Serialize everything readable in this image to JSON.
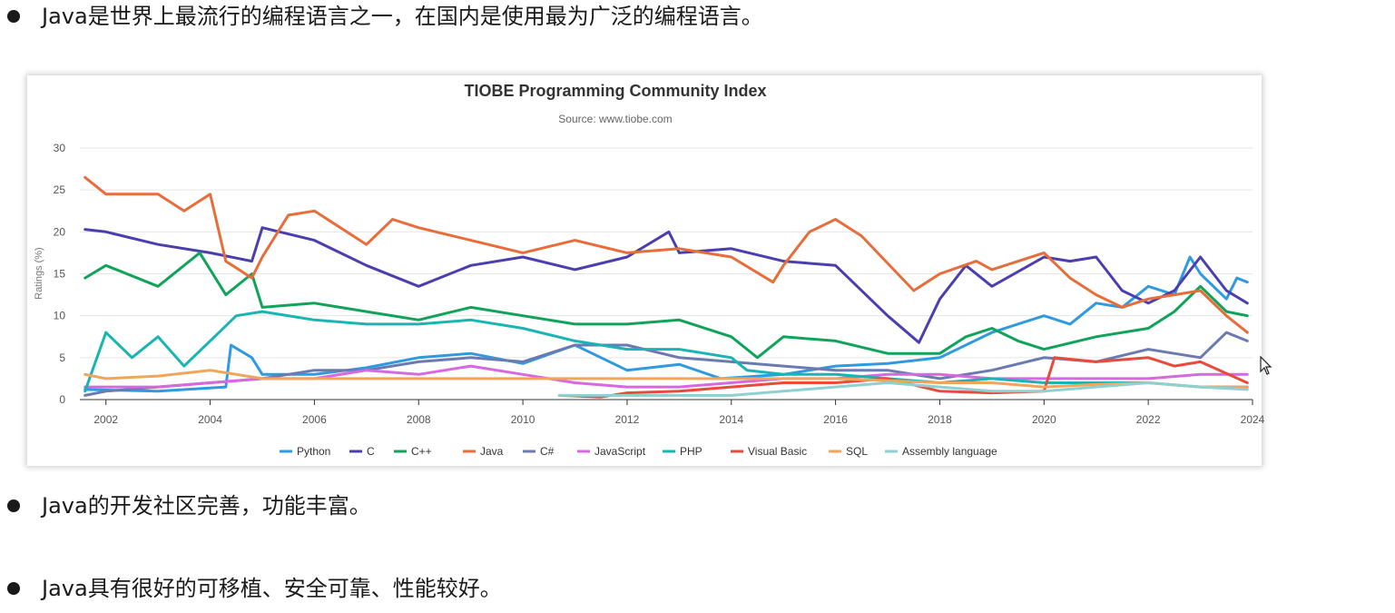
{
  "bullets": [
    {
      "text": "Java是世界上最流行的编程语言之一，在国内是使用最为广泛的编程语言。"
    },
    {
      "text": "Java的开发社区完善，功能丰富。"
    },
    {
      "text": "Java具有很好的可移植、安全可靠、性能较好。"
    }
  ],
  "chart_data": {
    "type": "line",
    "title": "TIOBE Programming Community Index",
    "subtitle": "Source: www.tiobe.com",
    "xlabel": "",
    "ylabel": "Ratings (%)",
    "xlim": [
      2001.5,
      2024.0
    ],
    "ylim": [
      0,
      30
    ],
    "xticks": [
      2002,
      2004,
      2006,
      2008,
      2010,
      2012,
      2014,
      2016,
      2018,
      2020,
      2022,
      2024
    ],
    "yticks": [
      0,
      5,
      10,
      15,
      20,
      25,
      30
    ],
    "grid": true,
    "legend": "bottom",
    "series": [
      {
        "name": "Python",
        "color": "#2f9ae0",
        "points": [
          [
            2001.6,
            1.2
          ],
          [
            2003,
            1.0
          ],
          [
            2004.3,
            1.5
          ],
          [
            2004.4,
            6.5
          ],
          [
            2004.8,
            5.0
          ],
          [
            2005,
            3.0
          ],
          [
            2006,
            3.0
          ],
          [
            2007,
            3.8
          ],
          [
            2008,
            5.0
          ],
          [
            2009,
            5.5
          ],
          [
            2010,
            4.3
          ],
          [
            2011,
            6.5
          ],
          [
            2012,
            3.5
          ],
          [
            2013,
            4.2
          ],
          [
            2013.8,
            2.5
          ],
          [
            2015,
            3.0
          ],
          [
            2016,
            4.0
          ],
          [
            2017,
            4.3
          ],
          [
            2018,
            5.0
          ],
          [
            2019,
            8.0
          ],
          [
            2020,
            10.0
          ],
          [
            2020.5,
            9.0
          ],
          [
            2021,
            11.5
          ],
          [
            2021.5,
            11.0
          ],
          [
            2022,
            13.5
          ],
          [
            2022.5,
            12.5
          ],
          [
            2022.8,
            17.0
          ],
          [
            2023,
            15.0
          ],
          [
            2023.5,
            12.0
          ],
          [
            2023.7,
            14.5
          ],
          [
            2023.9,
            14.0
          ]
        ]
      },
      {
        "name": "C",
        "color": "#4b3fb0",
        "points": [
          [
            2001.6,
            20.3
          ],
          [
            2002,
            20.0
          ],
          [
            2003,
            18.5
          ],
          [
            2004,
            17.5
          ],
          [
            2004.8,
            16.5
          ],
          [
            2005,
            20.5
          ],
          [
            2006,
            19.0
          ],
          [
            2007,
            16.0
          ],
          [
            2008,
            13.5
          ],
          [
            2009,
            16.0
          ],
          [
            2010,
            17.0
          ],
          [
            2011,
            15.5
          ],
          [
            2012,
            17.0
          ],
          [
            2012.8,
            20.0
          ],
          [
            2013,
            17.5
          ],
          [
            2014,
            18.0
          ],
          [
            2015,
            16.5
          ],
          [
            2016,
            16.0
          ],
          [
            2017,
            10.0
          ],
          [
            2017.6,
            6.8
          ],
          [
            2018,
            12.0
          ],
          [
            2018.5,
            16.0
          ],
          [
            2019,
            13.5
          ],
          [
            2020,
            17.0
          ],
          [
            2020.5,
            16.5
          ],
          [
            2021,
            17.0
          ],
          [
            2021.5,
            13.0
          ],
          [
            2022,
            11.5
          ],
          [
            2022.5,
            13.0
          ],
          [
            2023,
            17.0
          ],
          [
            2023.5,
            13.0
          ],
          [
            2023.9,
            11.5
          ]
        ]
      },
      {
        "name": "C++",
        "color": "#10a35a",
        "points": [
          [
            2001.6,
            14.5
          ],
          [
            2002,
            16.0
          ],
          [
            2003,
            13.5
          ],
          [
            2003.8,
            17.5
          ],
          [
            2004.3,
            12.5
          ],
          [
            2004.8,
            15.0
          ],
          [
            2005,
            11.0
          ],
          [
            2006,
            11.5
          ],
          [
            2007,
            10.5
          ],
          [
            2008,
            9.5
          ],
          [
            2009,
            11.0
          ],
          [
            2010,
            10.0
          ],
          [
            2011,
            9.0
          ],
          [
            2012,
            9.0
          ],
          [
            2013,
            9.5
          ],
          [
            2014,
            7.5
          ],
          [
            2014.5,
            5.0
          ],
          [
            2015,
            7.5
          ],
          [
            2016,
            7.0
          ],
          [
            2017,
            5.5
          ],
          [
            2018,
            5.5
          ],
          [
            2018.5,
            7.5
          ],
          [
            2019,
            8.5
          ],
          [
            2019.5,
            7.0
          ],
          [
            2020,
            6.0
          ],
          [
            2021,
            7.5
          ],
          [
            2022,
            8.5
          ],
          [
            2022.5,
            10.5
          ],
          [
            2023,
            13.5
          ],
          [
            2023.5,
            10.5
          ],
          [
            2023.9,
            10.0
          ]
        ]
      },
      {
        "name": "Java",
        "color": "#e76d3a",
        "points": [
          [
            2001.6,
            26.5
          ],
          [
            2002,
            24.5
          ],
          [
            2003,
            24.5
          ],
          [
            2003.5,
            22.5
          ],
          [
            2004,
            24.5
          ],
          [
            2004.3,
            16.5
          ],
          [
            2004.8,
            14.5
          ],
          [
            2005,
            17.0
          ],
          [
            2005.5,
            22.0
          ],
          [
            2006,
            22.5
          ],
          [
            2007,
            18.5
          ],
          [
            2007.5,
            21.5
          ],
          [
            2008,
            20.5
          ],
          [
            2009,
            19.0
          ],
          [
            2010,
            17.5
          ],
          [
            2011,
            19.0
          ],
          [
            2012,
            17.5
          ],
          [
            2013,
            18.0
          ],
          [
            2014,
            17.0
          ],
          [
            2014.8,
            14.0
          ],
          [
            2015,
            16.0
          ],
          [
            2015.5,
            20.0
          ],
          [
            2016,
            21.5
          ],
          [
            2016.5,
            19.5
          ],
          [
            2017.5,
            13.0
          ],
          [
            2018,
            15.0
          ],
          [
            2018.7,
            16.5
          ],
          [
            2019,
            15.5
          ],
          [
            2020,
            17.5
          ],
          [
            2020.5,
            14.5
          ],
          [
            2021,
            12.5
          ],
          [
            2021.5,
            11.0
          ],
          [
            2022,
            12.0
          ],
          [
            2022.5,
            12.5
          ],
          [
            2023,
            13.0
          ],
          [
            2023.5,
            10.0
          ],
          [
            2023.9,
            8.0
          ]
        ]
      },
      {
        "name": "C#",
        "color": "#6b7ab0",
        "points": [
          [
            2001.6,
            0.5
          ],
          [
            2002,
            1.0
          ],
          [
            2003,
            1.5
          ],
          [
            2004,
            2.0
          ],
          [
            2005,
            2.5
          ],
          [
            2006,
            3.5
          ],
          [
            2007,
            3.5
          ],
          [
            2008,
            4.5
          ],
          [
            2009,
            5.0
          ],
          [
            2010,
            4.5
          ],
          [
            2011,
            6.5
          ],
          [
            2012,
            6.5
          ],
          [
            2013,
            5.0
          ],
          [
            2014,
            4.5
          ],
          [
            2015,
            4.0
          ],
          [
            2016,
            3.5
          ],
          [
            2017,
            3.5
          ],
          [
            2018,
            2.5
          ],
          [
            2019,
            3.5
          ],
          [
            2020,
            5.0
          ],
          [
            2021,
            4.5
          ],
          [
            2022,
            6.0
          ],
          [
            2023,
            5.0
          ],
          [
            2023.5,
            8.0
          ],
          [
            2023.9,
            7.0
          ]
        ]
      },
      {
        "name": "JavaScript",
        "color": "#d868e0",
        "points": [
          [
            2001.6,
            1.5
          ],
          [
            2003,
            1.5
          ],
          [
            2004,
            2.0
          ],
          [
            2005,
            2.5
          ],
          [
            2006,
            2.5
          ],
          [
            2007,
            3.5
          ],
          [
            2008,
            3.0
          ],
          [
            2009,
            4.0
          ],
          [
            2010,
            3.0
          ],
          [
            2011,
            2.0
          ],
          [
            2012,
            1.5
          ],
          [
            2013,
            1.5
          ],
          [
            2014,
            2.0
          ],
          [
            2015,
            2.5
          ],
          [
            2016,
            2.5
          ],
          [
            2017,
            3.0
          ],
          [
            2018,
            3.0
          ],
          [
            2019,
            2.5
          ],
          [
            2020,
            2.5
          ],
          [
            2021,
            2.5
          ],
          [
            2022,
            2.5
          ],
          [
            2023,
            3.0
          ],
          [
            2023.9,
            3.0
          ]
        ]
      },
      {
        "name": "PHP",
        "color": "#1ab5b3",
        "points": [
          [
            2001.6,
            1.0
          ],
          [
            2002,
            8.0
          ],
          [
            2002.5,
            5.0
          ],
          [
            2003,
            7.5
          ],
          [
            2003.5,
            4.0
          ],
          [
            2004,
            7.0
          ],
          [
            2004.5,
            10.0
          ],
          [
            2005,
            10.5
          ],
          [
            2006,
            9.5
          ],
          [
            2007,
            9.0
          ],
          [
            2008,
            9.0
          ],
          [
            2009,
            9.5
          ],
          [
            2010,
            8.5
          ],
          [
            2011,
            7.0
          ],
          [
            2012,
            6.0
          ],
          [
            2013,
            6.0
          ],
          [
            2014,
            5.0
          ],
          [
            2014.3,
            3.5
          ],
          [
            2015,
            3.0
          ],
          [
            2016,
            3.0
          ],
          [
            2017,
            2.5
          ],
          [
            2018,
            2.0
          ],
          [
            2019,
            2.5
          ],
          [
            2020,
            2.0
          ],
          [
            2021,
            2.0
          ],
          [
            2022,
            2.0
          ],
          [
            2023,
            1.5
          ],
          [
            2023.9,
            1.5
          ]
        ]
      },
      {
        "name": "Visual Basic",
        "color": "#e64b3c",
        "points": [
          [
            2010.7,
            0.5
          ],
          [
            2011.5,
            0.3
          ],
          [
            2012,
            0.8
          ],
          [
            2013,
            1.0
          ],
          [
            2014,
            1.5
          ],
          [
            2015,
            2.0
          ],
          [
            2016,
            2.0
          ],
          [
            2017,
            2.5
          ],
          [
            2018,
            1.0
          ],
          [
            2019,
            0.8
          ],
          [
            2020,
            1.0
          ],
          [
            2020.2,
            5.0
          ],
          [
            2021,
            4.5
          ],
          [
            2022,
            5.0
          ],
          [
            2022.5,
            4.0
          ],
          [
            2023,
            4.5
          ],
          [
            2023.9,
            2.0
          ]
        ]
      },
      {
        "name": "SQL",
        "color": "#f0a65a",
        "points": [
          [
            2001.6,
            3.0
          ],
          [
            2002,
            2.5
          ],
          [
            2003,
            2.8
          ],
          [
            2004,
            3.5
          ],
          [
            2005,
            2.5
          ],
          [
            2008,
            2.5
          ],
          [
            2012,
            2.5
          ],
          [
            2016,
            2.5
          ],
          [
            2018,
            2.0
          ],
          [
            2019,
            2.0
          ],
          [
            2020,
            1.5
          ],
          [
            2021,
            1.8
          ],
          [
            2022,
            2.0
          ],
          [
            2023,
            1.5
          ],
          [
            2023.9,
            1.5
          ]
        ]
      },
      {
        "name": "Assembly language",
        "color": "#8fd1d1",
        "points": [
          [
            2010.7,
            0.5
          ],
          [
            2012,
            0.5
          ],
          [
            2013,
            0.5
          ],
          [
            2014,
            0.5
          ],
          [
            2015,
            1.0
          ],
          [
            2016,
            1.5
          ],
          [
            2017,
            2.0
          ],
          [
            2018,
            1.5
          ],
          [
            2019,
            1.0
          ],
          [
            2020,
            1.0
          ],
          [
            2021,
            1.5
          ],
          [
            2022,
            2.0
          ],
          [
            2023,
            1.5
          ],
          [
            2023.9,
            1.2
          ]
        ]
      }
    ]
  }
}
